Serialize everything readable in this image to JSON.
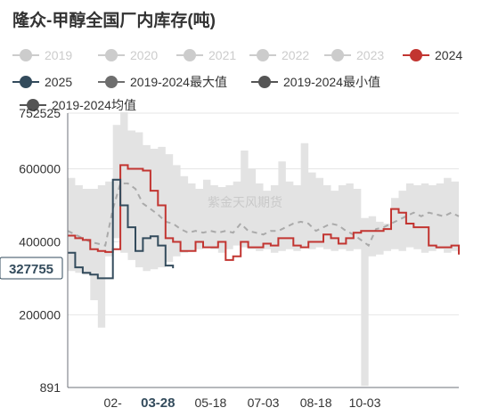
{
  "colors": {
    "band": "#e3e3e3",
    "avg": "#aaaaaa",
    "s2024": "#c23531",
    "s2025": "#334b5c",
    "grid": "#e6e6e6",
    "axis": "#6e7079",
    "muted": "#cccccc",
    "text": "#333333",
    "watermark": "#c9c9c9"
  },
  "chart_data": {
    "type": "line",
    "title": "隆众-甲醇全国厂内库存(吨)",
    "watermark": "紫金天风期货",
    "legend": [
      {
        "name": "2019",
        "color": "#cccccc",
        "muted": true,
        "icon": "circle"
      },
      {
        "name": "2020",
        "color": "#cccccc",
        "muted": true,
        "icon": "circle"
      },
      {
        "name": "2021",
        "color": "#cccccc",
        "muted": true,
        "icon": "circle"
      },
      {
        "name": "2022",
        "color": "#cccccc",
        "muted": true,
        "icon": "circle"
      },
      {
        "name": "2023",
        "color": "#cccccc",
        "muted": true,
        "icon": "circle"
      },
      {
        "name": "2024",
        "color": "#c23531",
        "muted": false,
        "icon": "circle"
      },
      {
        "name": "2025",
        "color": "#334b5c",
        "muted": false,
        "icon": "circle"
      },
      {
        "name": "2019-2024最大值",
        "color": "#6e6e6e",
        "muted": false,
        "icon": "circle"
      },
      {
        "name": "2019-2024最小值",
        "color": "#555555",
        "muted": false,
        "icon": "circle"
      },
      {
        "name": "2019-2024均值",
        "color": "#555555",
        "muted": false,
        "icon": "circle"
      }
    ],
    "y_ticks": [
      {
        "value": 891,
        "label": "891"
      },
      {
        "value": 200000,
        "label": "200000"
      },
      {
        "value": 400000,
        "label": "400000"
      },
      {
        "value": 600000,
        "label": "600000"
      },
      {
        "value": 752525,
        "label": "752525"
      }
    ],
    "ylim": [
      891,
      752525
    ],
    "x_domain": [
      1,
      53
    ],
    "x_ticks": [
      {
        "week": 7,
        "label": "02-"
      },
      {
        "week": 13,
        "label": "03-28",
        "highlight": true
      },
      {
        "week": 20,
        "label": "05-18"
      },
      {
        "week": 27,
        "label": "07-03"
      },
      {
        "week": 34,
        "label": "08-18"
      },
      {
        "week": 40.5,
        "label": "10-03"
      }
    ],
    "y_marker": {
      "value": 327755,
      "label": "327755"
    },
    "band_max": [
      575000,
      555000,
      545000,
      545000,
      555000,
      565000,
      720000,
      755000,
      705000,
      700000,
      665000,
      655000,
      660000,
      640000,
      610000,
      580000,
      560000,
      545000,
      570000,
      555000,
      550000,
      555000,
      565000,
      650000,
      600000,
      560000,
      540000,
      555000,
      620000,
      565000,
      555000,
      670000,
      590000,
      575000,
      555000,
      540000,
      555000,
      560000,
      545000,
      465000,
      470000,
      455000,
      450000,
      520000,
      540000,
      560000,
      555000,
      560000,
      555000,
      560000,
      575000,
      565000,
      575000
    ],
    "band_min": [
      350000,
      320000,
      315000,
      310000,
      240000,
      165000,
      360000,
      410000,
      370000,
      350000,
      330000,
      320000,
      325000,
      330000,
      345000,
      360000,
      370000,
      375000,
      380000,
      385000,
      380000,
      370000,
      380000,
      390000,
      385000,
      380000,
      375000,
      380000,
      370000,
      375000,
      380000,
      375000,
      385000,
      380000,
      385000,
      380000,
      375000,
      380000,
      375000,
      380000,
      5000,
      360000,
      365000,
      375000,
      380000,
      375000,
      385000,
      380000,
      370000,
      375000,
      380000,
      370000,
      375000
    ],
    "avg": [
      430000,
      420000,
      410000,
      400000,
      395000,
      390000,
      490000,
      560000,
      560000,
      545000,
      505000,
      490000,
      475000,
      455000,
      450000,
      435000,
      425000,
      430000,
      425000,
      430000,
      425000,
      430000,
      425000,
      450000,
      430000,
      425000,
      420000,
      430000,
      430000,
      440000,
      450000,
      455000,
      450000,
      430000,
      440000,
      450000,
      445000,
      430000,
      420000,
      405000,
      390000,
      435000,
      440000,
      450000,
      460000,
      470000,
      480000,
      470000,
      480000,
      475000,
      470000,
      480000,
      470000
    ],
    "series": [
      {
        "name": "2024",
        "color": "#c23531",
        "values": [
          417000,
          410000,
          405000,
          380000,
          375000,
          372000,
          380000,
          610000,
          600000,
          600000,
          595000,
          540000,
          500000,
          410000,
          400000,
          375000,
          375000,
          400000,
          385000,
          385000,
          400000,
          350000,
          360000,
          400000,
          385000,
          385000,
          395000,
          390000,
          410000,
          410000,
          390000,
          385000,
          400000,
          400000,
          420000,
          410000,
          395000,
          410000,
          425000,
          430000,
          430000,
          430000,
          435000,
          490000,
          480000,
          450000,
          440000,
          440000,
          390000,
          385000,
          385000,
          390000,
          365000
        ]
      },
      {
        "name": "2025",
        "color": "#334b5c",
        "values": [
          370000,
          330000,
          315000,
          310000,
          300000,
          300000,
          570000,
          500000,
          440000,
          375000,
          410000,
          415000,
          390000,
          335000,
          327755
        ]
      }
    ]
  }
}
